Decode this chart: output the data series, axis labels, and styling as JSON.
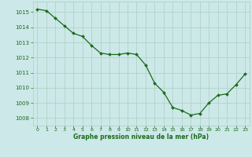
{
  "x": [
    0,
    1,
    2,
    3,
    4,
    5,
    6,
    7,
    8,
    9,
    10,
    11,
    12,
    13,
    14,
    15,
    16,
    17,
    18,
    19,
    20,
    21,
    22,
    23
  ],
  "y": [
    1015.2,
    1015.1,
    1014.6,
    1014.1,
    1013.6,
    1013.4,
    1012.8,
    1012.3,
    1012.2,
    1012.2,
    1012.3,
    1012.2,
    1011.5,
    1010.3,
    1009.7,
    1008.7,
    1008.5,
    1008.2,
    1008.3,
    1009.0,
    1009.5,
    1009.6,
    1010.2,
    1010.9
  ],
  "line_color": "#1a6b1a",
  "marker_color": "#1a6b1a",
  "bg_color": "#cce8e8",
  "grid_color": "#aad0c0",
  "axis_label_color": "#1a6b1a",
  "tick_label_color": "#1a6b1a",
  "xlabel": "Graphe pression niveau de la mer (hPa)",
  "ylim": [
    1007.5,
    1015.7
  ],
  "yticks": [
    1008,
    1009,
    1010,
    1011,
    1012,
    1013,
    1014,
    1015
  ],
  "xlim": [
    -0.5,
    23.5
  ],
  "xticks": [
    0,
    1,
    2,
    3,
    4,
    5,
    6,
    7,
    8,
    9,
    10,
    11,
    12,
    13,
    14,
    15,
    16,
    17,
    18,
    19,
    20,
    21,
    22,
    23
  ]
}
